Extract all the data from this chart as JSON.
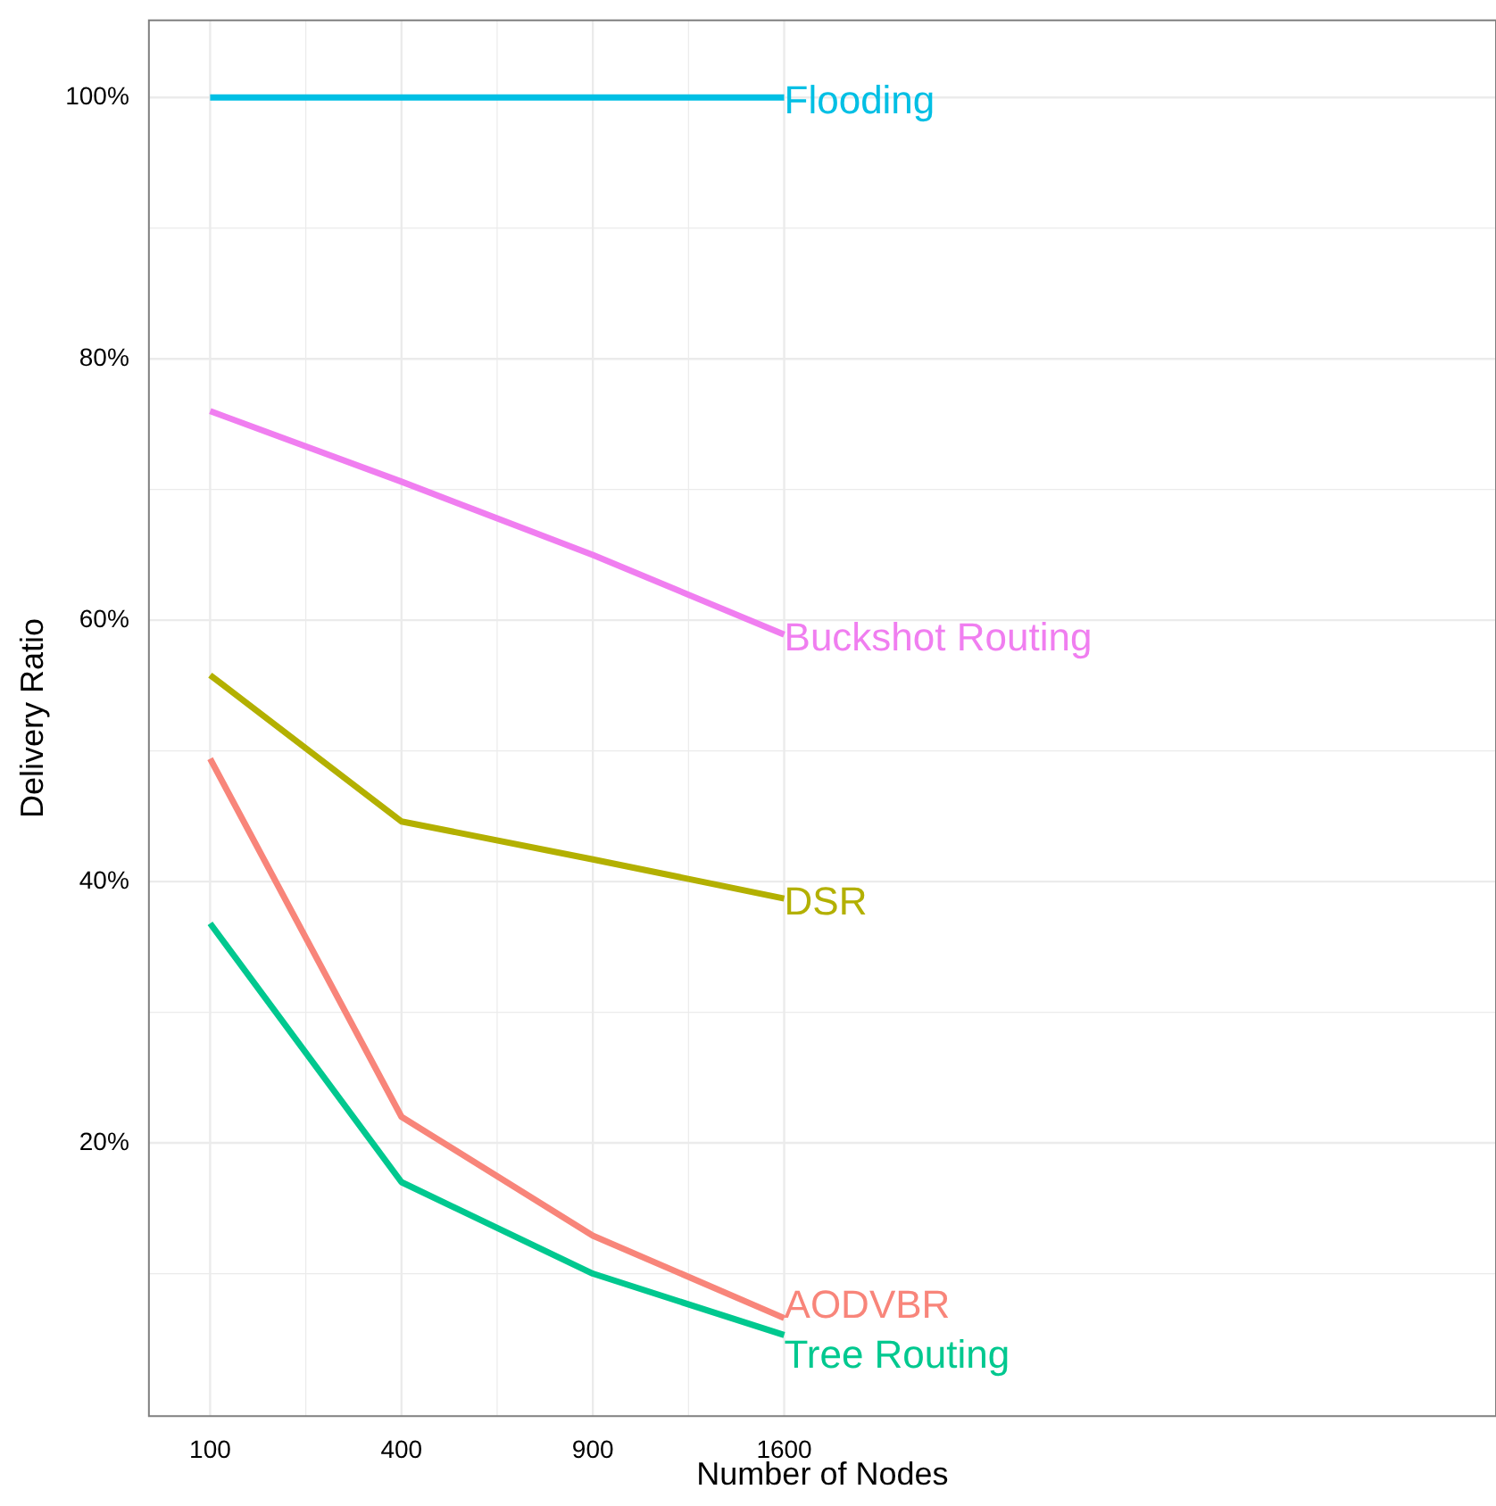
{
  "chart_data": {
    "type": "line",
    "xlabel": "Number of Nodes",
    "ylabel": "Delivery Ratio",
    "categories": [
      "100",
      "400",
      "900",
      "1600"
    ],
    "ylim": [
      -0.9,
      105.9
    ],
    "yticks": [
      {
        "value": 20,
        "label": "20%"
      },
      {
        "value": 40,
        "label": "40%"
      },
      {
        "value": 60,
        "label": "60%"
      },
      {
        "value": 80,
        "label": "80%"
      },
      {
        "value": 100,
        "label": "100%"
      }
    ],
    "grid": true,
    "legend": false,
    "marker": "none",
    "line_style": "solid",
    "series": [
      {
        "name": "Flooding",
        "color": "#00bfe4",
        "values": [
          100,
          100,
          100,
          100
        ]
      },
      {
        "name": "Buckshot Routing",
        "color": "#f07ef0",
        "values": [
          76.0,
          70.6,
          65.0,
          58.9
        ]
      },
      {
        "name": "DSR",
        "color": "#b3b000",
        "values": [
          55.8,
          44.6,
          41.7,
          38.7
        ]
      },
      {
        "name": "AODVBR",
        "color": "#f8857a",
        "values": [
          49.4,
          22.0,
          12.9,
          6.6
        ]
      },
      {
        "name": "Tree Routing",
        "color": "#00c88f",
        "values": [
          36.8,
          17.0,
          10.0,
          5.3
        ]
      }
    ]
  }
}
